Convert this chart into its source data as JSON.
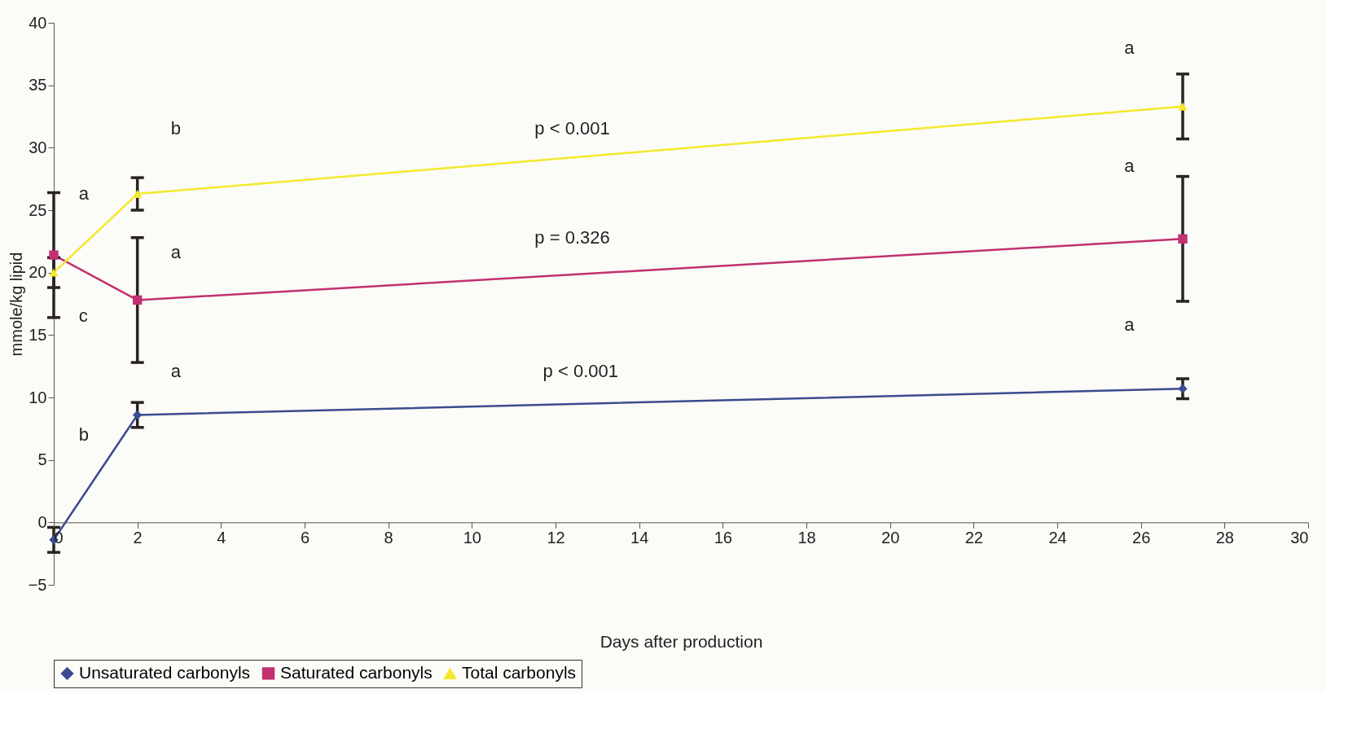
{
  "chart_data": {
    "type": "line",
    "xlabel": "Days after production",
    "ylabel": "mmole/kg lipid",
    "x": [
      0,
      2,
      27
    ],
    "series": [
      {
        "name": "Unsaturated carbonyls",
        "color": "#3b4b8f",
        "marker": "diamond",
        "values": [
          -1.4,
          8.6,
          10.7
        ],
        "errors": [
          1.0,
          1.0,
          0.8
        ]
      },
      {
        "name": "Saturated carbonyls",
        "color": "#c2306f",
        "marker": "square",
        "values": [
          21.4,
          17.8,
          22.7
        ],
        "errors": [
          5.0,
          5.0,
          5.0
        ]
      },
      {
        "name": "Total carbonyls",
        "color": "#f5e82a",
        "marker": "triangle",
        "values": [
          20.0,
          26.3,
          33.3
        ],
        "errors": [
          1.2,
          1.3,
          2.6
        ]
      }
    ],
    "xlim": [
      0,
      30
    ],
    "xticks": [
      0,
      2,
      4,
      6,
      8,
      10,
      12,
      14,
      16,
      18,
      20,
      22,
      24,
      26,
      28,
      30
    ],
    "ylim": [
      -5,
      40
    ],
    "yticks": [
      -5,
      0,
      5,
      10,
      15,
      20,
      25,
      30,
      35,
      40
    ],
    "grid": false,
    "legend": "bottom",
    "annotations": [
      "a",
      "c",
      "b",
      "b",
      "a",
      "a",
      "a",
      "a",
      "a",
      "p < 0.001",
      "p = 0.326",
      "p < 0.001"
    ]
  }
}
